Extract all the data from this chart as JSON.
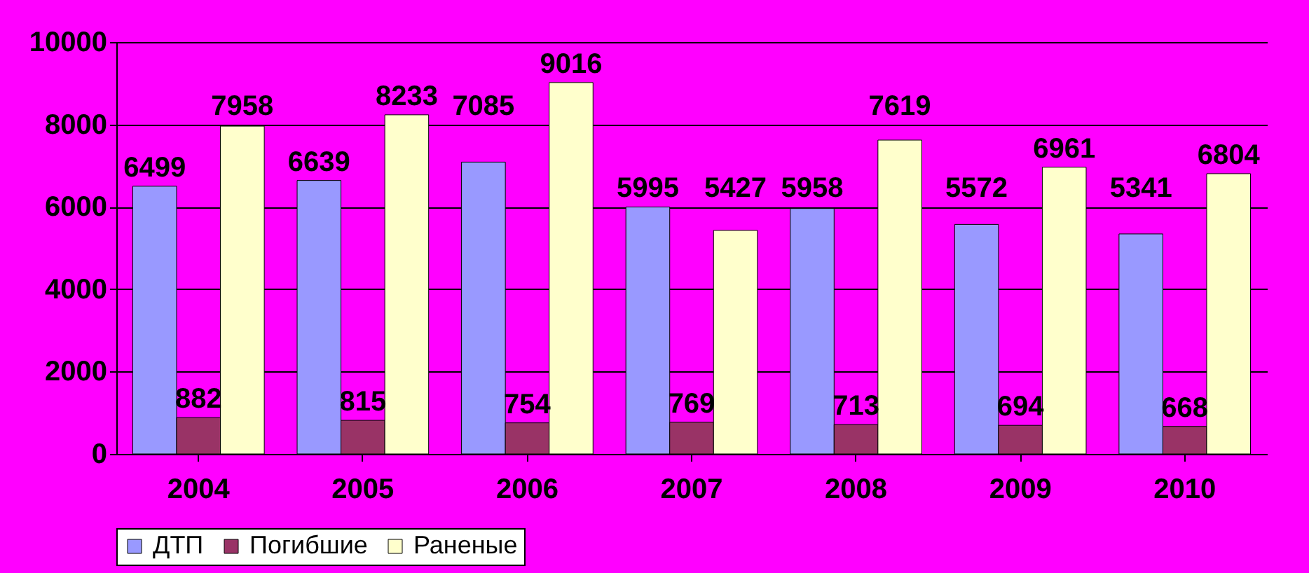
{
  "chart_data": {
    "type": "bar",
    "categories": [
      "2004",
      "2005",
      "2006",
      "2007",
      "2008",
      "2009",
      "2010"
    ],
    "series": [
      {
        "name": "ДТП",
        "color": "#9999ff",
        "values": [
          6499,
          6639,
          7085,
          5995,
          5958,
          5572,
          5341
        ]
      },
      {
        "name": "Погибшие",
        "color": "#993366",
        "values": [
          882,
          815,
          754,
          769,
          713,
          694,
          668
        ]
      },
      {
        "name": "Раненые",
        "color": "#ffffcc",
        "values": [
          7958,
          8233,
          9016,
          5427,
          7619,
          6961,
          6804
        ]
      }
    ],
    "ylim": [
      0,
      10000
    ],
    "yticks": [
      0,
      2000,
      4000,
      6000,
      8000,
      10000
    ],
    "grid": "y",
    "legend": "bottom",
    "data_labels": true
  }
}
